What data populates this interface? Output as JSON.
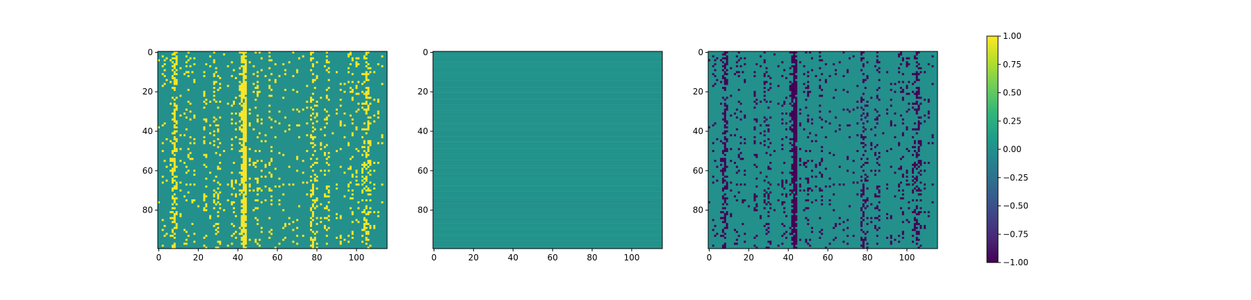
{
  "chart_data": [
    {
      "type": "heatmap",
      "title": "",
      "xlabel": "",
      "ylabel": "",
      "n_cols": 116,
      "n_rows": 100,
      "xlim": [
        0,
        116
      ],
      "ylim": [
        100,
        0
      ],
      "xticks": [
        0,
        20,
        40,
        60,
        80,
        100
      ],
      "yticks": [
        0,
        20,
        40,
        60,
        80
      ],
      "background_value": 0.0,
      "cell_value": 1.0,
      "column_densities": [
        {
          "col": 0,
          "d": 0.05
        },
        {
          "col": 2,
          "d": 0.12
        },
        {
          "col": 3,
          "d": 0.08
        },
        {
          "col": 4,
          "d": 0.06
        },
        {
          "col": 6,
          "d": 0.1
        },
        {
          "col": 7,
          "d": 0.3
        },
        {
          "col": 8,
          "d": 0.55
        },
        {
          "col": 9,
          "d": 0.25
        },
        {
          "col": 11,
          "d": 0.08
        },
        {
          "col": 13,
          "d": 0.1
        },
        {
          "col": 14,
          "d": 0.12
        },
        {
          "col": 15,
          "d": 0.1
        },
        {
          "col": 16,
          "d": 0.14
        },
        {
          "col": 17,
          "d": 0.08
        },
        {
          "col": 18,
          "d": 0.1
        },
        {
          "col": 20,
          "d": 0.06
        },
        {
          "col": 23,
          "d": 0.22
        },
        {
          "col": 24,
          "d": 0.18
        },
        {
          "col": 26,
          "d": 0.15
        },
        {
          "col": 28,
          "d": 0.22
        },
        {
          "col": 29,
          "d": 0.2
        },
        {
          "col": 30,
          "d": 0.25
        },
        {
          "col": 31,
          "d": 0.12
        },
        {
          "col": 33,
          "d": 0.08
        },
        {
          "col": 35,
          "d": 0.07
        },
        {
          "col": 37,
          "d": 0.15
        },
        {
          "col": 38,
          "d": 0.12
        },
        {
          "col": 39,
          "d": 0.1
        },
        {
          "col": 41,
          "d": 0.3
        },
        {
          "col": 42,
          "d": 0.55
        },
        {
          "col": 43,
          "d": 0.93
        },
        {
          "col": 44,
          "d": 0.85
        },
        {
          "col": 46,
          "d": 0.1
        },
        {
          "col": 48,
          "d": 0.08
        },
        {
          "col": 49,
          "d": 0.18
        },
        {
          "col": 50,
          "d": 0.2
        },
        {
          "col": 51,
          "d": 0.12
        },
        {
          "col": 52,
          "d": 0.08
        },
        {
          "col": 54,
          "d": 0.1
        },
        {
          "col": 56,
          "d": 0.14
        },
        {
          "col": 57,
          "d": 0.18
        },
        {
          "col": 59,
          "d": 0.1
        },
        {
          "col": 61,
          "d": 0.08
        },
        {
          "col": 63,
          "d": 0.06
        },
        {
          "col": 64,
          "d": 0.1
        },
        {
          "col": 66,
          "d": 0.08
        },
        {
          "col": 68,
          "d": 0.1
        },
        {
          "col": 70,
          "d": 0.12
        },
        {
          "col": 71,
          "d": 0.08
        },
        {
          "col": 73,
          "d": 0.06
        },
        {
          "col": 75,
          "d": 0.1
        },
        {
          "col": 77,
          "d": 0.3
        },
        {
          "col": 78,
          "d": 0.38
        },
        {
          "col": 79,
          "d": 0.2
        },
        {
          "col": 80,
          "d": 0.15
        },
        {
          "col": 82,
          "d": 0.12
        },
        {
          "col": 84,
          "d": 0.2
        },
        {
          "col": 85,
          "d": 0.28
        },
        {
          "col": 86,
          "d": 0.18
        },
        {
          "col": 88,
          "d": 0.06
        },
        {
          "col": 90,
          "d": 0.1
        },
        {
          "col": 92,
          "d": 0.12
        },
        {
          "col": 94,
          "d": 0.08
        },
        {
          "col": 96,
          "d": 0.12
        },
        {
          "col": 97,
          "d": 0.15
        },
        {
          "col": 98,
          "d": 0.18
        },
        {
          "col": 100,
          "d": 0.1
        },
        {
          "col": 101,
          "d": 0.12
        },
        {
          "col": 103,
          "d": 0.22
        },
        {
          "col": 104,
          "d": 0.3
        },
        {
          "col": 105,
          "d": 0.4
        },
        {
          "col": 106,
          "d": 0.35
        },
        {
          "col": 107,
          "d": 0.18
        },
        {
          "col": 109,
          "d": 0.08
        },
        {
          "col": 111,
          "d": 0.06
        },
        {
          "col": 113,
          "d": 0.05
        }
      ],
      "seed": 1234
    },
    {
      "type": "heatmap",
      "title": "",
      "xlabel": "",
      "ylabel": "",
      "n_cols": 116,
      "n_rows": 100,
      "xlim": [
        0,
        116
      ],
      "ylim": [
        100,
        0
      ],
      "xticks": [
        0,
        20,
        40,
        60,
        80,
        100
      ],
      "yticks": [
        0,
        20,
        40,
        60,
        80
      ],
      "background_value": 0.0,
      "row_value_range": [
        0.0,
        0.04
      ]
    },
    {
      "type": "heatmap",
      "title": "",
      "xlabel": "",
      "ylabel": "",
      "n_cols": 116,
      "n_rows": 100,
      "xlim": [
        0,
        116
      ],
      "ylim": [
        100,
        0
      ],
      "xticks": [
        0,
        20,
        40,
        60,
        80,
        100
      ],
      "yticks": [
        0,
        20,
        40,
        60,
        80
      ],
      "background_value": 0.0,
      "cell_value": -1.0,
      "mirrors_panel": 0
    }
  ],
  "colorbar": {
    "colormap": "viridis",
    "vmin": -1.0,
    "vmax": 1.0,
    "ticks": [
      1.0,
      0.75,
      0.5,
      0.25,
      0.0,
      -0.25,
      -0.5,
      -0.75,
      -1.0
    ],
    "tick_labels": [
      "1.00",
      "0.75",
      "0.50",
      "0.25",
      "0.00",
      "−0.25",
      "−0.50",
      "−0.75",
      "−1.00"
    ]
  },
  "colors": {
    "viridis_stops": [
      "#440154",
      "#482878",
      "#3e4989",
      "#31688e",
      "#26828e",
      "#1f9e89",
      "#35b779",
      "#6ece58",
      "#b5de2b",
      "#fde725"
    ]
  }
}
